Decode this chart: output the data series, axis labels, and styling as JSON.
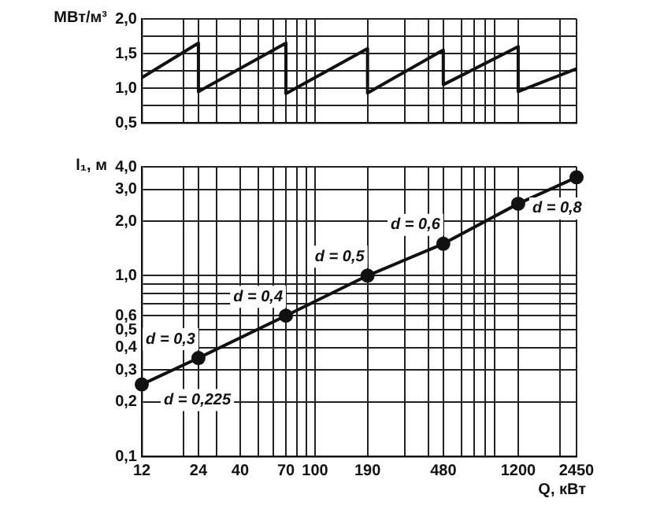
{
  "chart_data": [
    {
      "type": "line",
      "ylabel": "МВт/м³",
      "x": [
        12,
        24,
        24,
        70,
        70,
        190,
        190,
        480,
        480,
        1200,
        1200,
        2450
      ],
      "values": [
        1.15,
        1.65,
        0.95,
        1.65,
        0.92,
        1.57,
        0.93,
        1.55,
        1.05,
        1.6,
        0.95,
        1.28
      ],
      "color": "#111111",
      "log": "x",
      "grid": true,
      "marker": "none",
      "tick_labels": "y",
      "xlim": [
        12,
        2450
      ],
      "ylim": [
        0.5,
        2.0
      ],
      "xticks": [
        12,
        {
          "value": 20,
          "label": null
        },
        24,
        {
          "value": 30,
          "label": null
        },
        40,
        {
          "value": 50,
          "label": null
        },
        {
          "value": 60,
          "label": null
        },
        70,
        {
          "value": 80,
          "label": null
        },
        {
          "value": 90,
          "label": null
        },
        100,
        190,
        {
          "value": 300,
          "label": null
        },
        {
          "value": 400,
          "label": null
        },
        480,
        {
          "value": 600,
          "label": null
        },
        {
          "value": 700,
          "label": null
        },
        {
          "value": 800,
          "label": null
        },
        {
          "value": 900,
          "label": null
        },
        1200,
        {
          "value": 2000,
          "label": null
        },
        2450
      ],
      "yticks": [
        {
          "value": 0.5,
          "label": "0,5"
        },
        {
          "value": 0.75,
          "label": null
        },
        {
          "value": 1.0,
          "label": "1,0"
        },
        {
          "value": 1.25,
          "label": null
        },
        {
          "value": 1.5,
          "label": "1,5"
        },
        {
          "value": 1.75,
          "label": null
        },
        {
          "value": 2.0,
          "label": "2,0"
        }
      ]
    },
    {
      "type": "line",
      "ylabel": "l₁, м",
      "xlabel": "Q, кВт",
      "x": [
        12,
        24,
        70,
        190,
        480,
        1200,
        2450
      ],
      "values": [
        0.25,
        0.35,
        0.6,
        1.0,
        1.5,
        2.5,
        3.5
      ],
      "color": "#111111",
      "log": "xy",
      "grid": true,
      "marker": "circle",
      "xlim": [
        12,
        2450
      ],
      "ylim": [
        0.1,
        4.0
      ],
      "xticks": [
        12,
        {
          "value": 20,
          "label": null
        },
        24,
        {
          "value": 30,
          "label": null
        },
        40,
        {
          "value": 50,
          "label": null
        },
        {
          "value": 60,
          "label": null
        },
        70,
        {
          "value": 80,
          "label": null
        },
        {
          "value": 90,
          "label": null
        },
        100,
        190,
        {
          "value": 300,
          "label": null
        },
        {
          "value": 400,
          "label": null
        },
        480,
        {
          "value": 600,
          "label": null
        },
        {
          "value": 700,
          "label": null
        },
        {
          "value": 800,
          "label": null
        },
        {
          "value": 900,
          "label": null
        },
        1200,
        {
          "value": 2000,
          "label": null
        },
        2450
      ],
      "yticks": [
        {
          "value": 0.1,
          "label": "0,1"
        },
        {
          "value": 0.2,
          "label": "0,2"
        },
        {
          "value": 0.3,
          "label": "0,3"
        },
        {
          "value": 0.4,
          "label": "0,4"
        },
        {
          "value": 0.5,
          "label": "0,5"
        },
        {
          "value": 0.6,
          "label": "0,6"
        },
        {
          "value": 0.7,
          "label": null
        },
        {
          "value": 0.8,
          "label": null
        },
        {
          "value": 0.9,
          "label": null
        },
        {
          "value": 1.0,
          "label": "1,0"
        },
        {
          "value": 2.0,
          "label": "2,0"
        },
        {
          "value": 3.0,
          "label": "3,0"
        },
        {
          "value": 4.0,
          "label": "4,0"
        }
      ],
      "annotations": [
        {
          "text": "d = 0,225",
          "x": 12,
          "y": 0.25
        },
        {
          "text": "d = 0,3",
          "x": 24,
          "y": 0.35
        },
        {
          "text": "d = 0,4",
          "x": 70,
          "y": 0.6
        },
        {
          "text": "d = 0,5",
          "x": 190,
          "y": 1.0
        },
        {
          "text": "d = 0,6",
          "x": 480,
          "y": 1.5
        },
        {
          "text": "d = 0,8",
          "x": 1200,
          "y": 2.5
        }
      ]
    }
  ]
}
